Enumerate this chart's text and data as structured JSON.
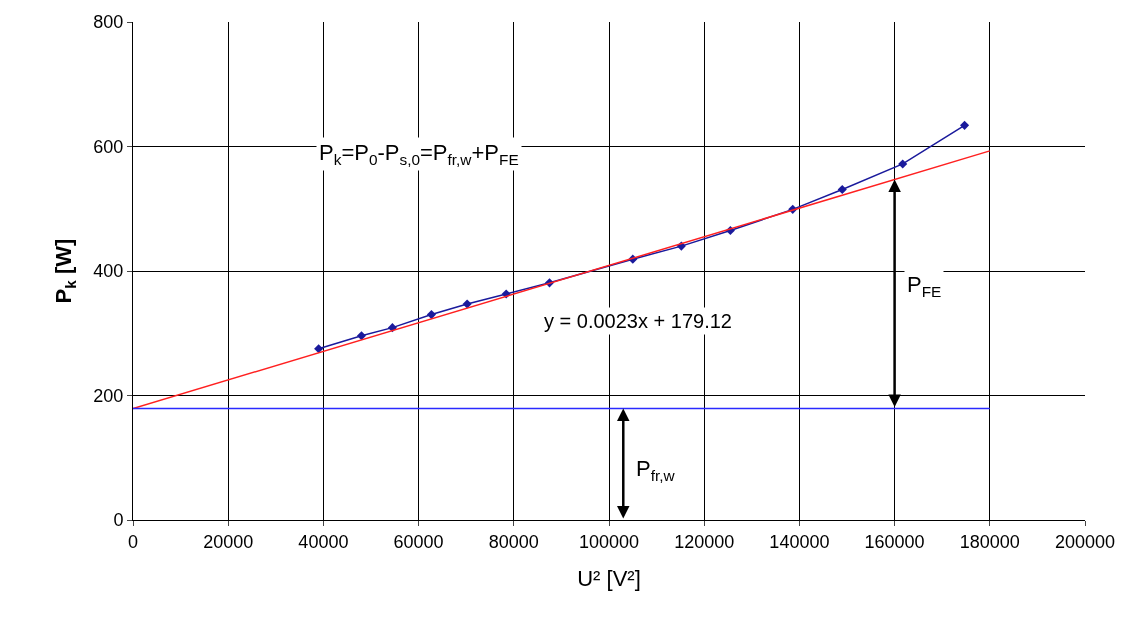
{
  "chart_data": {
    "type": "line",
    "xlabel": "U² [V²]",
    "ylabel": "P$_{k}$ [W]",
    "xlim": [
      0,
      200000
    ],
    "xticks": [
      0,
      20000,
      40000,
      60000,
      80000,
      100000,
      120000,
      140000,
      160000,
      180000,
      200000
    ],
    "ylim": [
      0,
      800
    ],
    "yticks": [
      0,
      200,
      400,
      600,
      800
    ],
    "grid": true,
    "marker": "diamond",
    "line_style": "solid",
    "series": [
      {
        "color": "#1a1a9c",
        "x": [
          39000,
          48000,
          54500,
          62700,
          70200,
          78400,
          87500,
          105000,
          115200,
          125500,
          138600,
          149000,
          161700,
          174700
        ],
        "values": [
          275,
          296,
          309,
          330,
          347,
          363,
          381,
          419,
          440,
          465,
          499,
          531,
          572,
          634
        ]
      },
      {
        "type": "line",
        "marker": "none",
        "color": "#ff2020",
        "x": [
          0,
          180000
        ],
        "values": [
          179,
          593
        ]
      },
      {
        "type": "line",
        "marker": "none",
        "color": "#2a2aff",
        "x": [
          0,
          180000
        ],
        "values": [
          179,
          179
        ]
      }
    ],
    "annotations": [
      "P$_{k}$=P$_{0}$-P$_{s,0}$=P$_{fr,w}$+P$_{FE}$",
      "y = 0.0023x + 179.12",
      "P$_{FE}$",
      "P$_{fr,w}$"
    ]
  }
}
